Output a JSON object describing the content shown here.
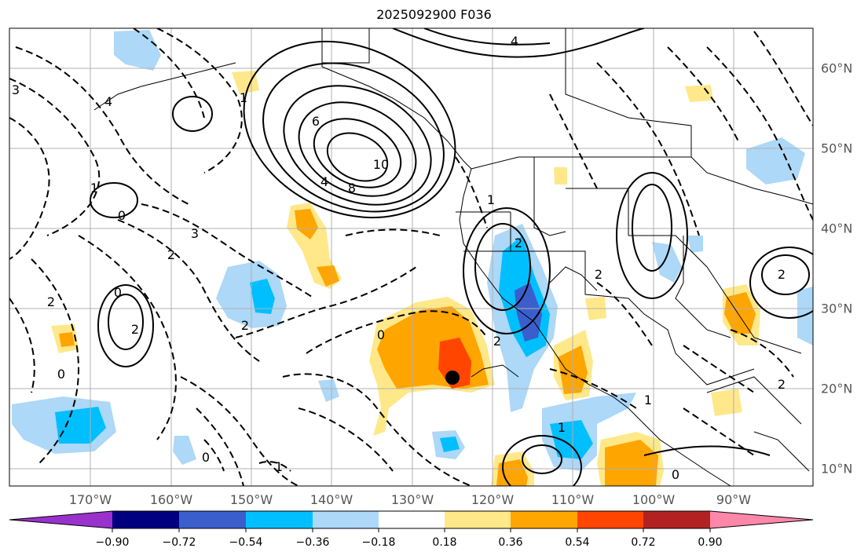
{
  "title": "2025092900 F036",
  "longitude_labels": [
    "170°W",
    "160°W",
    "150°W",
    "140°W",
    "130°W",
    "120°W",
    "110°W",
    "100°W",
    "90°W"
  ],
  "latitude_labels": [
    "60°N",
    "50°N",
    "40°N",
    "30°N",
    "20°N",
    "10°N"
  ],
  "colorbar": {
    "ticks": [
      "−0.90",
      "−0.72",
      "−0.54",
      "−0.36",
      "−0.18",
      "0.18",
      "0.36",
      "0.54",
      "0.72",
      "0.90"
    ],
    "colors": [
      "#9932cc",
      "#000080",
      "#3a5fcd",
      "#00bfff",
      "#add8f7",
      "#ffffff",
      "#ffe88a",
      "#ffa500",
      "#ff4500",
      "#b22222",
      "#ff88aa"
    ]
  },
  "contour_labels": {
    "positive": [
      "10",
      "8",
      "6",
      "4",
      "2",
      "1",
      "2",
      "1",
      "2",
      "4",
      "1",
      "2",
      "1"
    ],
    "negative": [
      "0",
      "2",
      "1",
      "2",
      "2",
      "4",
      "3",
      "0",
      "0",
      "0",
      "0",
      "1",
      "2",
      "2",
      "3",
      "0"
    ]
  },
  "colors": {
    "land_outline": "#000000",
    "grid": "#b0b0b0",
    "marker": "#000000"
  }
}
